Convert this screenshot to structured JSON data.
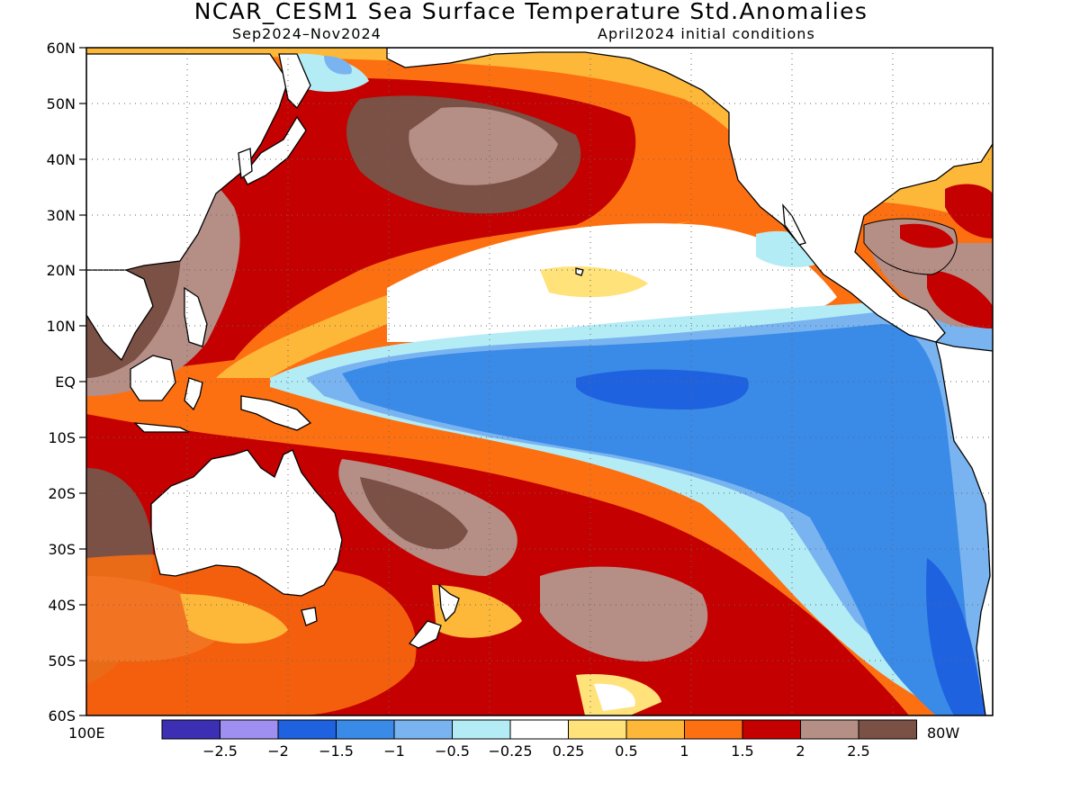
{
  "title": "NCAR_CESM1 Sea Surface Temperature Std.Anomalies",
  "subtitle_left": "Sep2024–Nov2024",
  "subtitle_right": "April2024 initial conditions",
  "axes": {
    "lat_labels": [
      "60N",
      "50N",
      "40N",
      "30N",
      "20N",
      "10N",
      "EQ",
      "10S",
      "20S",
      "30S",
      "40S",
      "50S",
      "60S"
    ],
    "lon_left": "100E",
    "lon_right": "80W"
  },
  "legend": {
    "colors": [
      "#3c2fb4",
      "#9f8ff0",
      "#1f62e0",
      "#3a8ae8",
      "#79b4f0",
      "#b4ecf6",
      "#ffffff",
      "#ffe27a",
      "#fdb83a",
      "#fd7011",
      "#c40000",
      "#b58e86",
      "#7b5045"
    ],
    "labels": [
      "−2.5",
      "−2",
      "−1.5",
      "−1",
      "−0.5",
      "−0.25",
      "0.25",
      "0.5",
      "1",
      "1.5",
      "2",
      "2.5"
    ]
  },
  "map": {
    "lat_range": [
      -60,
      60
    ],
    "lon_range_deg_east": [
      100,
      280
    ],
    "land_color": "#ffffff",
    "grid": "dotted"
  }
}
